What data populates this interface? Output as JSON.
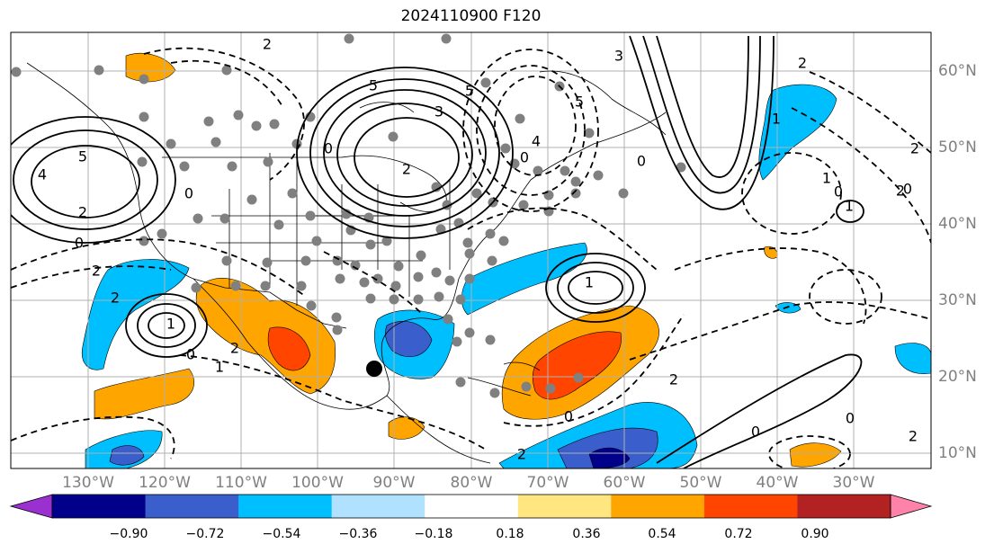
{
  "title": "2024110900 F120",
  "longitude_labels": [
    "130°W",
    "120°W",
    "110°W",
    "100°W",
    "90°W",
    "80°W",
    "70°W",
    "60°W",
    "50°W",
    "40°W",
    "30°W"
  ],
  "latitude_labels": [
    "60°N",
    "50°N",
    "40°N",
    "30°N",
    "20°N",
    "10°N"
  ],
  "colorbar": {
    "tick_labels": [
      "−0.90",
      "−0.72",
      "−0.54",
      "−0.36",
      "−0.18",
      "0.18",
      "0.36",
      "0.54",
      "0.72",
      "0.90"
    ],
    "colors": [
      "#9b30d0",
      "#00008b",
      "#3a5fcd",
      "#00bfff",
      "#b0e2ff",
      "#ffffff",
      "#ffe680",
      "#ffa500",
      "#ff4500",
      "#b22222",
      "#ff82ab"
    ],
    "under_color": "#9b30d0",
    "over_color": "#ff82ab"
  },
  "contour_labels": [
    "2",
    "5",
    "3",
    "4",
    "5",
    "2",
    "0",
    "2",
    "0",
    "2",
    "5",
    "4",
    "5",
    "3",
    "0",
    "1",
    "0",
    "2",
    "1",
    "2",
    "0",
    "2",
    "1",
    "0",
    "0",
    "2",
    "0",
    "1",
    "1",
    "2",
    "2",
    "1",
    "0",
    "2",
    "0",
    "0",
    "2"
  ],
  "marker": {
    "color": "#000000"
  },
  "station_dot_color": "#808080"
}
